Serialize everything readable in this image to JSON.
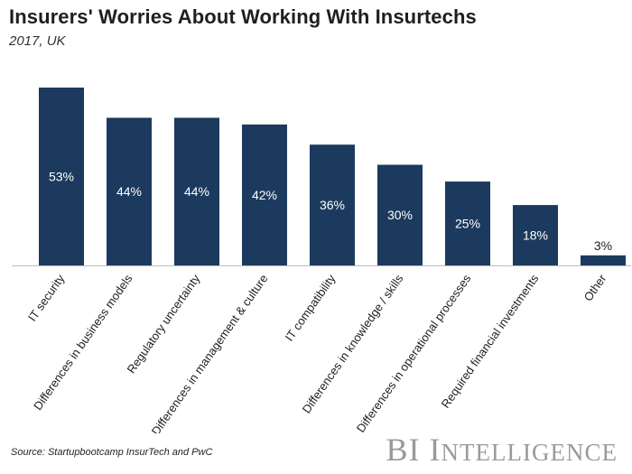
{
  "header": {
    "title": "Insurers' Worries About Working With Insurtechs",
    "subtitle": "2017, UK"
  },
  "footer": {
    "source": "Source: Startupbootcamp InsurTech and PwC",
    "brand_first": "BI",
    "brand_cap": "I",
    "brand_rest": "NTELLIGENCE"
  },
  "colors": {
    "bar": "#1c3a5e",
    "bar_label_inside": "#ffffff",
    "bar_label_outside": "#1f1f1f",
    "axis": "#bfbfbf"
  },
  "chart_data": {
    "type": "bar",
    "title": "Insurers' Worries About Working With Insurtechs",
    "subtitle": "2017, UK",
    "categories": [
      "IT security",
      "Differences in business models",
      "Regulatory uncertainty",
      "Differences in management & culture",
      "IT compatibility",
      "Differences in knowledge / skills",
      "Differences in operational processes",
      "Required financial investments",
      "Other"
    ],
    "values": [
      53,
      44,
      44,
      42,
      36,
      30,
      25,
      18,
      3
    ],
    "value_labels": [
      "53%",
      "44%",
      "44%",
      "42%",
      "36%",
      "30%",
      "25%",
      "18%",
      "3%"
    ],
    "unit": "%",
    "xlabel": "",
    "ylabel": "",
    "ylim": [
      0,
      53
    ],
    "grid": false,
    "legend": "none"
  }
}
